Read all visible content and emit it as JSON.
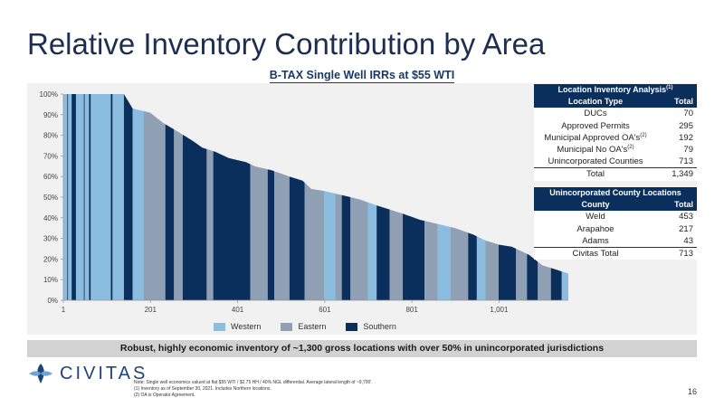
{
  "title": "Relative Inventory Contribution by Area",
  "subtitle": "B-TAX Single Well IRRs at $55 WTI",
  "chart_data": {
    "type": "bar",
    "title": "",
    "xlabel": "",
    "ylabel": "",
    "ylim": [
      0,
      100
    ],
    "xlim": [
      1,
      1160
    ],
    "y_ticks": [
      "0%",
      "10%",
      "20%",
      "30%",
      "40%",
      "50%",
      "60%",
      "70%",
      "80%",
      "90%",
      "100%"
    ],
    "x_ticks": [
      1,
      201,
      401,
      601,
      801,
      1001
    ],
    "grid": false,
    "legend_position": "bottom",
    "series": [
      {
        "name": "Western",
        "color": "#8bbde0"
      },
      {
        "name": "Eastern",
        "color": "#8f9fb4"
      },
      {
        "name": "Southern",
        "color": "#0b2f5c"
      }
    ],
    "curve": [
      [
        1,
        100
      ],
      [
        140,
        100
      ],
      [
        160,
        93
      ],
      [
        200,
        91
      ],
      [
        230,
        86
      ],
      [
        270,
        81
      ],
      [
        300,
        77
      ],
      [
        320,
        74
      ],
      [
        350,
        72
      ],
      [
        380,
        69
      ],
      [
        420,
        67
      ],
      [
        440,
        65
      ],
      [
        480,
        63
      ],
      [
        520,
        60
      ],
      [
        550,
        58
      ],
      [
        570,
        54
      ],
      [
        600,
        53
      ],
      [
        640,
        51
      ],
      [
        680,
        49
      ],
      [
        720,
        46
      ],
      [
        750,
        44
      ],
      [
        780,
        42
      ],
      [
        820,
        39
      ],
      [
        860,
        37
      ],
      [
        900,
        35
      ],
      [
        940,
        32
      ],
      [
        970,
        29
      ],
      [
        1000,
        27
      ],
      [
        1030,
        26
      ],
      [
        1070,
        22
      ],
      [
        1100,
        17
      ],
      [
        1130,
        15
      ],
      [
        1160,
        13
      ]
    ],
    "area_segments": [
      [
        1,
        10,
        "Western"
      ],
      [
        10,
        12,
        "Southern"
      ],
      [
        12,
        20,
        "Western"
      ],
      [
        20,
        30,
        "Southern"
      ],
      [
        30,
        48,
        "Western"
      ],
      [
        48,
        50,
        "Southern"
      ],
      [
        50,
        60,
        "Western"
      ],
      [
        60,
        64,
        "Southern"
      ],
      [
        64,
        110,
        "Western"
      ],
      [
        110,
        114,
        "Southern"
      ],
      [
        114,
        140,
        "Western"
      ],
      [
        140,
        160,
        "Southern"
      ],
      [
        160,
        185,
        "Western"
      ],
      [
        185,
        235,
        "Eastern"
      ],
      [
        235,
        255,
        "Southern"
      ],
      [
        255,
        275,
        "Eastern"
      ],
      [
        275,
        330,
        "Southern"
      ],
      [
        330,
        345,
        "Eastern"
      ],
      [
        345,
        430,
        "Southern"
      ],
      [
        430,
        470,
        "Eastern"
      ],
      [
        470,
        485,
        "Southern"
      ],
      [
        485,
        520,
        "Eastern"
      ],
      [
        520,
        555,
        "Southern"
      ],
      [
        555,
        600,
        "Eastern"
      ],
      [
        600,
        625,
        "Western"
      ],
      [
        625,
        640,
        "Eastern"
      ],
      [
        640,
        660,
        "Southern"
      ],
      [
        660,
        700,
        "Eastern"
      ],
      [
        700,
        720,
        "Western"
      ],
      [
        720,
        750,
        "Southern"
      ],
      [
        750,
        780,
        "Eastern"
      ],
      [
        780,
        830,
        "Southern"
      ],
      [
        830,
        860,
        "Eastern"
      ],
      [
        860,
        890,
        "Western"
      ],
      [
        890,
        930,
        "Eastern"
      ],
      [
        930,
        950,
        "Southern"
      ],
      [
        950,
        970,
        "Western"
      ],
      [
        970,
        1000,
        "Eastern"
      ],
      [
        1000,
        1040,
        "Southern"
      ],
      [
        1040,
        1065,
        "Eastern"
      ],
      [
        1065,
        1090,
        "Southern"
      ],
      [
        1090,
        1120,
        "Eastern"
      ],
      [
        1120,
        1145,
        "Southern"
      ],
      [
        1145,
        1160,
        "Western"
      ]
    ]
  },
  "location_table": {
    "header": "Location Inventory Analysis",
    "header_note": "(1)",
    "col_type": "Location Type",
    "col_total": "Total",
    "rows": [
      {
        "label": "DUCs",
        "note": "",
        "value": "70"
      },
      {
        "label": "Approved Permits",
        "note": "",
        "value": "295"
      },
      {
        "label": "Municipal Approved OA's",
        "note": "(2)",
        "value": "192"
      },
      {
        "label": "Municipal No OA's",
        "note": "(2)",
        "value": "79"
      },
      {
        "label": "Unincorporated Counties",
        "note": "",
        "value": "713"
      }
    ],
    "total_label": "Total",
    "total_value": "1,349"
  },
  "county_table": {
    "header": "Unincorporated County Locations",
    "col_county": "County",
    "col_total": "Total",
    "rows": [
      {
        "label": "Weld",
        "value": "453"
      },
      {
        "label": "Arapahoe",
        "value": "217"
      },
      {
        "label": "Adams",
        "value": "43"
      }
    ],
    "total_label": "Civitas Total",
    "total_value": "713"
  },
  "banner": "Robust, highly economic inventory of ~1,300 gross locations with over 50% in unincorporated jurisdictions",
  "logo": {
    "text": "CIVITAS",
    "colors": [
      "#1f4478",
      "#6fa3d4"
    ]
  },
  "notes": [
    "Note:  Single well economics valued at flat $55 WTI / $2.75 HH / 40% NGL differential. Average lateral length of ~9,700'.",
    "(1)     Inventory as of September 30, 2021. Includes Northern locations.",
    "(2)     OA is Operator Agreement."
  ],
  "page_number": "16"
}
